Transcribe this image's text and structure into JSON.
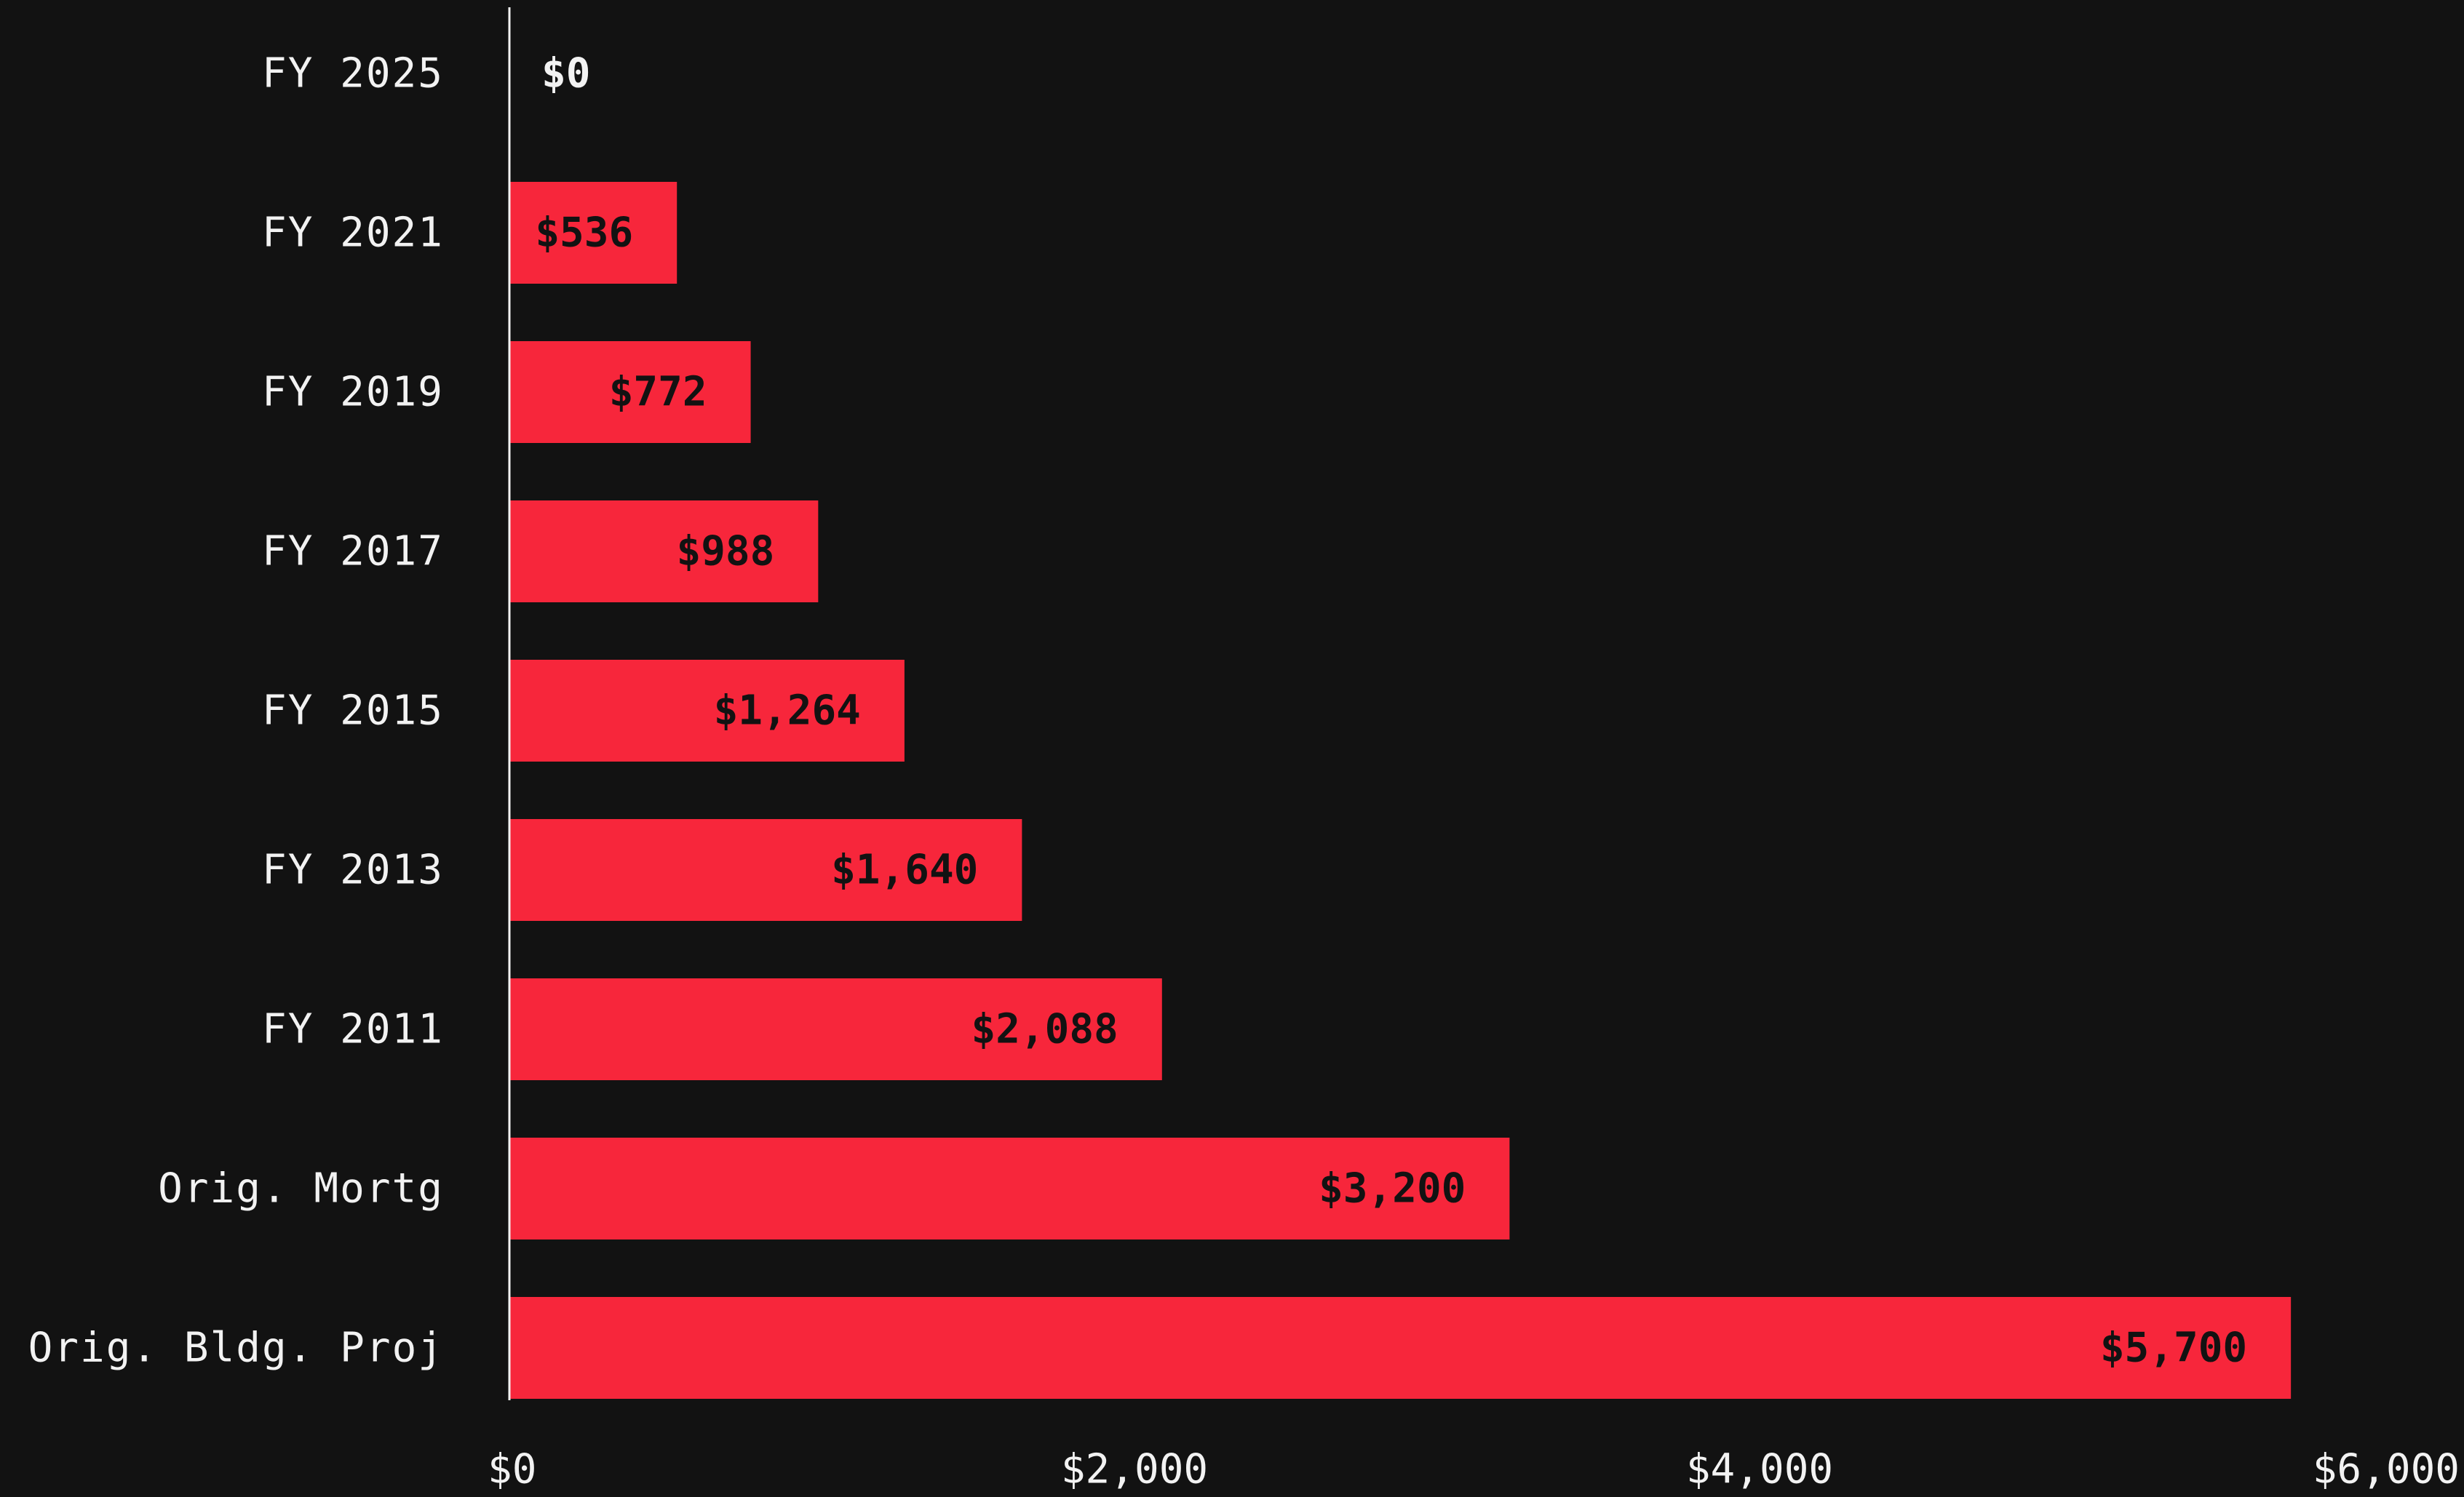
{
  "chart_data": {
    "type": "bar",
    "orientation": "horizontal",
    "categories": [
      "FY 2025",
      "FY 2021",
      "FY 2019",
      "FY 2017",
      "FY 2015",
      "FY 2013",
      "FY 2011",
      "Orig. Mortg",
      "Orig. Bldg. Proj"
    ],
    "values": [
      0,
      536,
      772,
      988,
      1264,
      1640,
      2088,
      3200,
      5700
    ],
    "value_labels": [
      "$0",
      "$536",
      "$772",
      "$988",
      "$1,264",
      "$1,640",
      "$2,088",
      "$3,200",
      "$5,700"
    ],
    "title": "",
    "xlabel": "",
    "ylabel": "",
    "x_ticks": [
      0,
      2000,
      4000,
      6000
    ],
    "x_tick_labels": [
      "$0",
      "$2,000",
      "$4,000",
      "$6,000"
    ],
    "grid": false,
    "legend": "none",
    "colors": {
      "background": "#121212",
      "bar": "#f7263b",
      "axis": "#f2f2f2",
      "label_text": "#f2f2f2",
      "value_text_on_bar": "#121212"
    }
  }
}
